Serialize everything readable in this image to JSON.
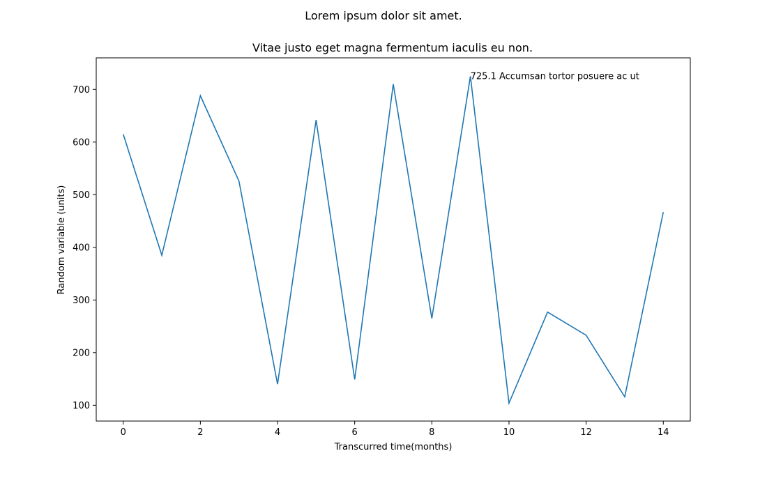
{
  "chart_data": {
    "type": "line",
    "title": "Lorem ipsum dolor sit amet.",
    "subtitle": "Vitae justo eget magna fermentum iaculis eu non.",
    "xlabel": "Transcurred time(months)",
    "ylabel": "Random variable (units)",
    "xlim": [
      -0.7,
      14.7
    ],
    "ylim": [
      70,
      760
    ],
    "xticks": [
      0,
      2,
      4,
      6,
      8,
      10,
      12,
      14
    ],
    "yticks": [
      100,
      200,
      300,
      400,
      500,
      600,
      700
    ],
    "grid": false,
    "line_color": "#1f77b4",
    "series": [
      {
        "x": [
          0,
          1,
          2,
          3,
          4,
          5,
          6,
          7,
          8,
          9,
          10,
          11,
          12,
          13,
          14
        ],
        "values": [
          615,
          385,
          688,
          526,
          140,
          642,
          149,
          710,
          265,
          725.1,
          104,
          277,
          233,
          116,
          467
        ]
      }
    ],
    "annotation": {
      "x": 9,
      "y": 725.1,
      "text": "725.1 Accumsan tortor posuere ac ut"
    }
  }
}
